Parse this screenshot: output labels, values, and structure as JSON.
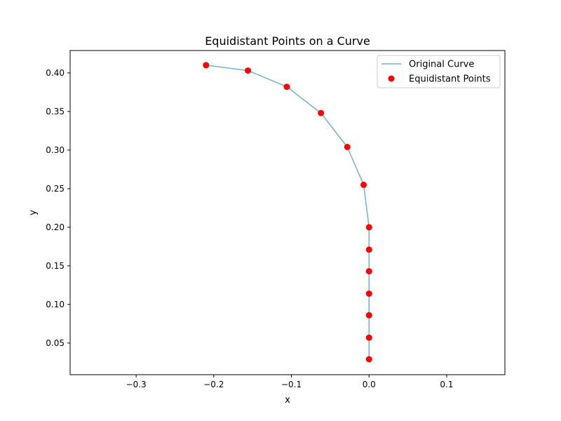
{
  "chart_data": {
    "type": "scatter",
    "title": "Equidistant Points on a Curve",
    "xlabel": "x",
    "ylabel": "y",
    "xlim": [
      -0.385,
      0.175
    ],
    "ylim": [
      0.009,
      0.429
    ],
    "xticks": [
      -0.3,
      -0.2,
      -0.1,
      0.0,
      0.1
    ],
    "xtick_labels": [
      "−0.3",
      "−0.2",
      "−0.1",
      "0.0",
      "0.1"
    ],
    "yticks": [
      0.05,
      0.1,
      0.15,
      0.2,
      0.25,
      0.3,
      0.35,
      0.4
    ],
    "ytick_labels": [
      "0.05",
      "0.10",
      "0.15",
      "0.20",
      "0.25",
      "0.30",
      "0.35",
      "0.40"
    ],
    "grid": false,
    "legend_position": "top-right",
    "series": [
      {
        "name": "Original Curve",
        "kind": "line",
        "color": "#1f77b4",
        "opacity": 0.6,
        "x": [
          -0.21,
          -0.156,
          -0.106,
          -0.062,
          -0.028,
          -0.007,
          0.0,
          0.0,
          0.0,
          0.0,
          0.0,
          0.0,
          0.0
        ],
        "y": [
          0.41,
          0.403,
          0.382,
          0.348,
          0.304,
          0.255,
          0.2,
          0.171,
          0.143,
          0.114,
          0.086,
          0.057,
          0.029
        ]
      },
      {
        "name": "Equidistant Points",
        "kind": "scatter",
        "color": "#ff0000",
        "x": [
          -0.21,
          -0.156,
          -0.106,
          -0.062,
          -0.028,
          -0.007,
          0.0,
          0.0,
          0.0,
          0.0,
          0.0,
          0.0,
          0.0
        ],
        "y": [
          0.41,
          0.403,
          0.382,
          0.348,
          0.304,
          0.255,
          0.2,
          0.171,
          0.143,
          0.114,
          0.086,
          0.057,
          0.029
        ]
      }
    ]
  }
}
